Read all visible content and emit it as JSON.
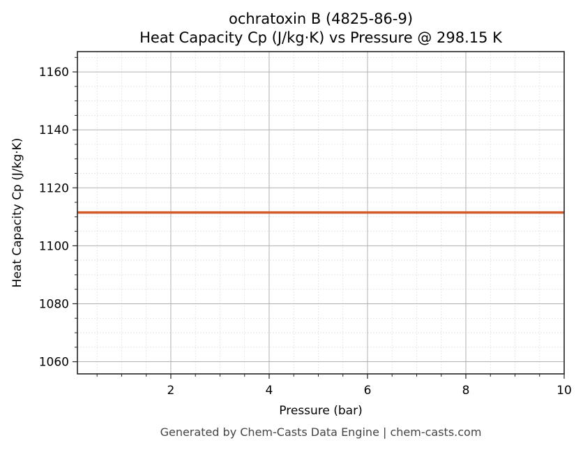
{
  "chart_data": {
    "type": "line",
    "title": "ochratoxin B (4825-86-9)",
    "subtitle": "Heat Capacity Cp (J/kg·K) vs Pressure @ 298.15 K",
    "xlabel": "Pressure (bar)",
    "ylabel": "Heat Capacity Cp (J/kg·K)",
    "xlim": [
      0.1,
      10
    ],
    "ylim": [
      1055.8,
      1167
    ],
    "xticks": [
      2,
      4,
      6,
      8,
      10
    ],
    "yticks": [
      1060,
      1080,
      1100,
      1120,
      1140,
      1160
    ],
    "grid": true,
    "minor_grid": true,
    "legend": null,
    "series": [
      {
        "name": "Cp",
        "color": "#d35a2a",
        "x": [
          0.1,
          1,
          2,
          3,
          4,
          5,
          6,
          7,
          8,
          9,
          10
        ],
        "y": [
          1111.5,
          1111.5,
          1111.5,
          1111.5,
          1111.5,
          1111.5,
          1111.5,
          1111.5,
          1111.5,
          1111.5,
          1111.5
        ]
      }
    ]
  },
  "footer": "Generated by Chem-Casts Data Engine | chem-casts.com",
  "tick_labels": {
    "x": [
      "2",
      "4",
      "6",
      "8",
      "10"
    ],
    "y": [
      "1060",
      "1080",
      "1100",
      "1120",
      "1140",
      "1160"
    ]
  }
}
